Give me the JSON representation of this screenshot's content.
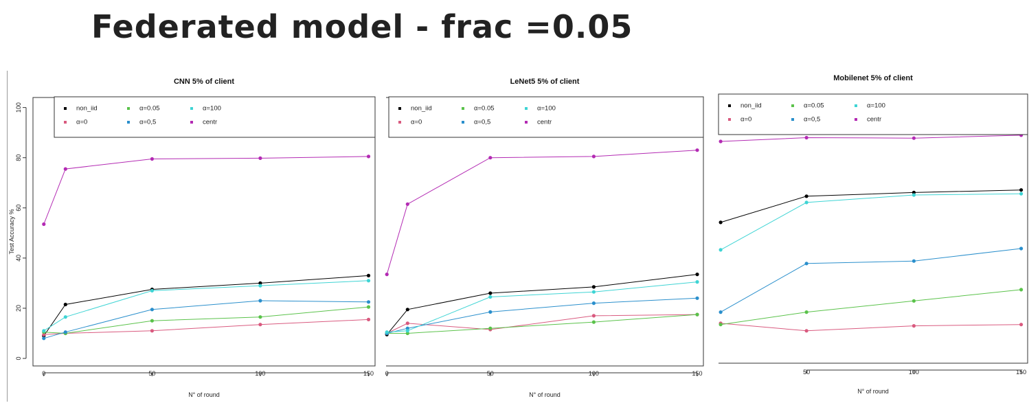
{
  "page": {
    "title": "Federated model - frac =0.05"
  },
  "colors": {
    "non_iid": "#000000",
    "a0": "#d95a7f",
    "a005": "#5ac24a",
    "a05": "#2a8fcc",
    "a100": "#3ed4d4",
    "centr": "#b32ab3"
  },
  "chart_data": [
    {
      "type": "line",
      "title": "CNN 5% of client",
      "xlabel": "N° of round",
      "ylabel": "Test Accuracy %",
      "x": [
        0,
        10,
        50,
        100,
        150
      ],
      "xticks": [
        0,
        50,
        100,
        150
      ],
      "yticks": [
        0,
        20,
        40,
        60,
        80,
        100
      ],
      "xlim": [
        -5,
        153
      ],
      "ylim": [
        -3,
        104
      ],
      "legend_position": "top",
      "series": [
        {
          "name": "non_iid",
          "key": "non_iid",
          "values": [
            9,
            21.5,
            27.5,
            30,
            33
          ]
        },
        {
          "name": "α=0",
          "key": "a0",
          "values": [
            9.5,
            10,
            11,
            13.5,
            15.5
          ]
        },
        {
          "name": "α=0.05",
          "key": "a005",
          "values": [
            10.5,
            10,
            15,
            16.5,
            20.5
          ]
        },
        {
          "name": "α=0,5",
          "key": "a05",
          "values": [
            8,
            10.5,
            19.5,
            23,
            22.5
          ]
        },
        {
          "name": "α=100",
          "key": "a100",
          "values": [
            11,
            16.5,
            27,
            29,
            31
          ]
        },
        {
          "name": "centr",
          "key": "centr",
          "values": [
            53.5,
            75.5,
            79.5,
            79.8,
            80.5
          ]
        }
      ]
    },
    {
      "type": "line",
      "title": "LeNet5 5% of client",
      "xlabel": "N° of round",
      "ylabel": "",
      "x": [
        0,
        10,
        50,
        100,
        150
      ],
      "xticks": [
        0,
        50,
        100,
        150
      ],
      "yticks": [],
      "xlim": [
        -0.4,
        153
      ],
      "ylim": [
        -3,
        104
      ],
      "legend_position": "top",
      "series": [
        {
          "name": "non_iid",
          "key": "non_iid",
          "values": [
            9.5,
            19.5,
            26,
            28.5,
            33.5
          ]
        },
        {
          "name": "α=0",
          "key": "a0",
          "values": [
            10,
            14,
            11.5,
            17,
            17.5
          ]
        },
        {
          "name": "α=0.05",
          "key": "a005",
          "values": [
            10,
            10,
            12,
            14.5,
            17.5
          ]
        },
        {
          "name": "α=0,5",
          "key": "a05",
          "values": [
            10,
            12,
            18.5,
            22,
            24
          ]
        },
        {
          "name": "α=100",
          "key": "a100",
          "values": [
            10.5,
            11,
            24.5,
            26.5,
            30.5
          ]
        },
        {
          "name": "centr",
          "key": "centr",
          "values": [
            33.5,
            61.5,
            80,
            80.5,
            83
          ]
        }
      ]
    },
    {
      "type": "line",
      "title": "Mobilenet 5% of client",
      "xlabel": "N° of round",
      "ylabel": "",
      "x": [
        10,
        50,
        100,
        150
      ],
      "xticks": [
        50,
        100,
        150
      ],
      "yticks": [],
      "xlim": [
        9,
        153
      ],
      "ylim": [
        -3,
        105
      ],
      "legend_position": "top",
      "series": [
        {
          "name": "non_iid",
          "key": "non_iid",
          "values": [
            53.5,
            64,
            65.5,
            66.5
          ]
        },
        {
          "name": "α=0",
          "key": "a0",
          "values": [
            13,
            10,
            12,
            12.5
          ]
        },
        {
          "name": "α=0.05",
          "key": "a005",
          "values": [
            12.5,
            17.5,
            22,
            26.5
          ]
        },
        {
          "name": "α=0,5",
          "key": "a05",
          "values": [
            17.5,
            37,
            38,
            43
          ]
        },
        {
          "name": "α=100",
          "key": "a100",
          "values": [
            42.5,
            61.5,
            64.5,
            65
          ]
        },
        {
          "name": "centr",
          "key": "centr",
          "values": [
            86,
            87.5,
            87.3,
            88.5
          ]
        }
      ]
    }
  ]
}
